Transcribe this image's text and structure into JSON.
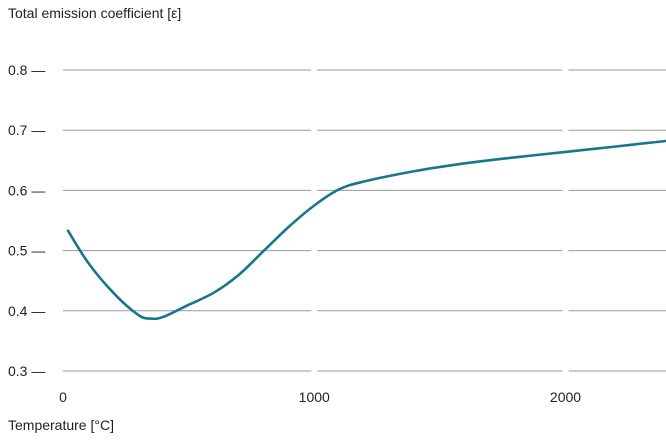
{
  "chart_data": {
    "type": "line",
    "ylabel": "Total emission coefficient [ε]",
    "xlabel": "Temperature [°C]",
    "xlim": [
      0,
      2400
    ],
    "ylim": [
      0.3,
      0.8
    ],
    "x_ticks": [
      0,
      1000,
      2000
    ],
    "y_ticks": [
      0.3,
      0.4,
      0.5,
      0.6,
      0.7,
      0.8
    ],
    "grid": "horizontal",
    "line_color": "#17788c",
    "series": [
      {
        "points": [
          [
            20,
            0.533
          ],
          [
            100,
            0.48
          ],
          [
            200,
            0.43
          ],
          [
            300,
            0.393
          ],
          [
            350,
            0.387
          ],
          [
            400,
            0.39
          ],
          [
            500,
            0.41
          ],
          [
            600,
            0.43
          ],
          [
            700,
            0.46
          ],
          [
            800,
            0.5
          ],
          [
            900,
            0.54
          ],
          [
            1000,
            0.575
          ],
          [
            1100,
            0.602
          ],
          [
            1200,
            0.615
          ],
          [
            1400,
            0.632
          ],
          [
            1600,
            0.645
          ],
          [
            1800,
            0.655
          ],
          [
            2000,
            0.664
          ],
          [
            2200,
            0.673
          ],
          [
            2400,
            0.682
          ]
        ]
      }
    ]
  }
}
